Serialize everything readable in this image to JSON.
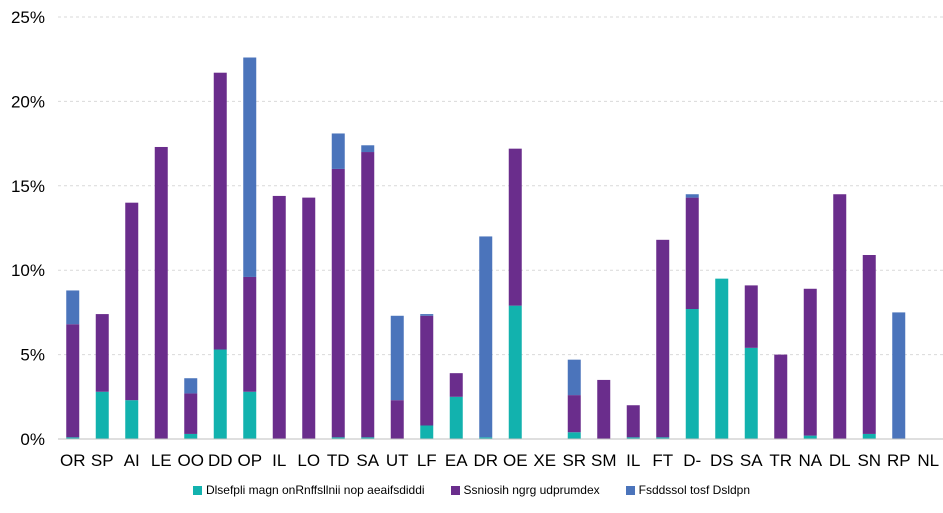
{
  "chart_data": {
    "type": "bar",
    "stacked": true,
    "categories": [
      "OR",
      "SP",
      "AI",
      "LE",
      "OO",
      "DD",
      "OP",
      "IL",
      "LO",
      "TD",
      "SA",
      "UT",
      "LF",
      "EA",
      "DR",
      "OE",
      "XE",
      "SR",
      "SM",
      "IL",
      "FT",
      "D-",
      "DS",
      "SA",
      "TR",
      "NA",
      "DL",
      "SN",
      "RP",
      "NL"
    ],
    "series": [
      {
        "name": "Dlsefpli magn onRnffsllnii nop aeaifsdiddi",
        "color": "#12B2AE",
        "values": [
          0.1,
          2.8,
          2.3,
          0,
          0.3,
          5.3,
          2.8,
          0,
          0,
          0.1,
          0.1,
          0,
          0.8,
          2.5,
          0.1,
          7.9,
          0,
          0.4,
          0,
          0.1,
          0.1,
          7.7,
          9.5,
          5.4,
          0,
          0.2,
          0,
          0.3,
          0,
          0
        ]
      },
      {
        "name": "Ssniosih ngrg udprumdex",
        "color": "#6A2D8C",
        "values": [
          6.7,
          4.6,
          11.7,
          17.3,
          2.4,
          16.4,
          6.8,
          14.4,
          14.3,
          15.9,
          16.9,
          2.3,
          6.5,
          1.4,
          0,
          9.3,
          0,
          2.2,
          3.5,
          1.9,
          11.7,
          6.6,
          0,
          3.7,
          5.0,
          8.7,
          14.5,
          10.6,
          0,
          0
        ]
      },
      {
        "name": "Fsddssol tosf Dsldpn",
        "color": "#4B74BB",
        "values": [
          2.0,
          0,
          0,
          0,
          0.9,
          0,
          13.0,
          0,
          0,
          2.1,
          0.4,
          5.0,
          0.1,
          0,
          11.9,
          0,
          0,
          2.1,
          0,
          0,
          0,
          0.2,
          0,
          0,
          0,
          0,
          0,
          0,
          7.5,
          0
        ]
      }
    ],
    "y_ticks": [
      "0%",
      "5%",
      "10%",
      "15%",
      "20%",
      "25%"
    ],
    "ylim": [
      0,
      25
    ],
    "grid": true,
    "legend_position": "bottom"
  }
}
